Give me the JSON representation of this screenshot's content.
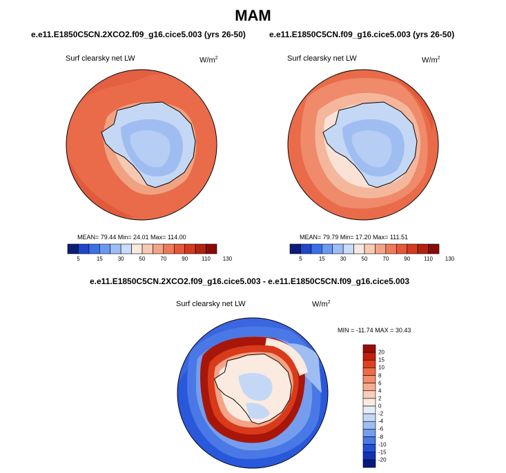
{
  "figure": {
    "season": "MAM",
    "units": "W/m",
    "units_sup": "2",
    "variable": "Surf clearsky net LW"
  },
  "chart_data": [
    {
      "type": "heatmap",
      "title": "e.e11.E1850C5CN.2XCO2.f09_g16.cice5.003 (yrs 26-50)",
      "variable": "Surf clearsky net LW",
      "units": "W/m2",
      "stats": {
        "mean": "79.44",
        "min": "24.01",
        "max": "114.00"
      },
      "stats_text": "MEAN=  79.44  Min=  24.01  Max=  114.00",
      "levels": [
        5,
        15,
        30,
        50,
        70,
        90,
        110,
        130
      ],
      "colorbar_tick_labels": [
        "5",
        "15",
        "30",
        "50",
        "70",
        "90",
        "110",
        "130"
      ],
      "colors": [
        "#0a1e78",
        "#1f47c8",
        "#3a6fe6",
        "#6a9af0",
        "#9dbdf5",
        "#c9dcf8",
        "#f9e9e0",
        "#f8c9b3",
        "#f4a486",
        "#ef7a5a",
        "#e6583a",
        "#d43a20",
        "#b32410",
        "#8b0a08"
      ]
    },
    {
      "type": "heatmap",
      "title": "e.e11.E1850C5CN.f09_g16.cice5.003 (yrs 26-50)",
      "variable": "Surf clearsky net LW",
      "units": "W/m2",
      "stats": {
        "mean": "79.79",
        "min": "17.20",
        "max": "111.51"
      },
      "stats_text": "MEAN=  79.79  Min=  17.20  Max=  111.51",
      "levels": [
        5,
        15,
        30,
        50,
        70,
        90,
        110,
        130
      ],
      "colorbar_tick_labels": [
        "5",
        "15",
        "30",
        "50",
        "70",
        "90",
        "110",
        "130"
      ],
      "colors": [
        "#0a1e78",
        "#1f47c8",
        "#3a6fe6",
        "#6a9af0",
        "#9dbdf5",
        "#c9dcf8",
        "#f9e9e0",
        "#f8c9b3",
        "#f4a486",
        "#ef7a5a",
        "#e6583a",
        "#d43a20",
        "#b32410",
        "#8b0a08"
      ]
    },
    {
      "type": "heatmap",
      "title": "e.e11.E1850C5CN.2XCO2.f09_g16.cice5.003 - e.e11.E1850C5CN.f09_g16.cice5.003",
      "variable": "Surf clearsky net LW",
      "units": "W/m2",
      "stats": {
        "min": "-11.74",
        "max": "30.43"
      },
      "stats_text": "MIN = -11.74 MAX =  30.43",
      "levels": [
        20,
        15,
        10,
        8,
        6,
        4,
        2,
        0,
        -2,
        -4,
        -6,
        -8,
        -10,
        -15,
        -20
      ],
      "colorbar_tick_labels": [
        "20",
        "15",
        "10",
        "8",
        "6",
        "4",
        "2",
        "0",
        "-2",
        "-4",
        "-6",
        "-8",
        "-10",
        "-15",
        "-20"
      ],
      "colors": [
        "#9a0d05",
        "#c0200a",
        "#e0401e",
        "#ef6a45",
        "#f48d6c",
        "#f6ac92",
        "#f9cdb9",
        "#fbeae0",
        "#e3eefb",
        "#c4d8f6",
        "#9fbdf1",
        "#759ded",
        "#4a78e6",
        "#2350d8",
        "#0f33b5",
        "#061a80"
      ]
    }
  ]
}
